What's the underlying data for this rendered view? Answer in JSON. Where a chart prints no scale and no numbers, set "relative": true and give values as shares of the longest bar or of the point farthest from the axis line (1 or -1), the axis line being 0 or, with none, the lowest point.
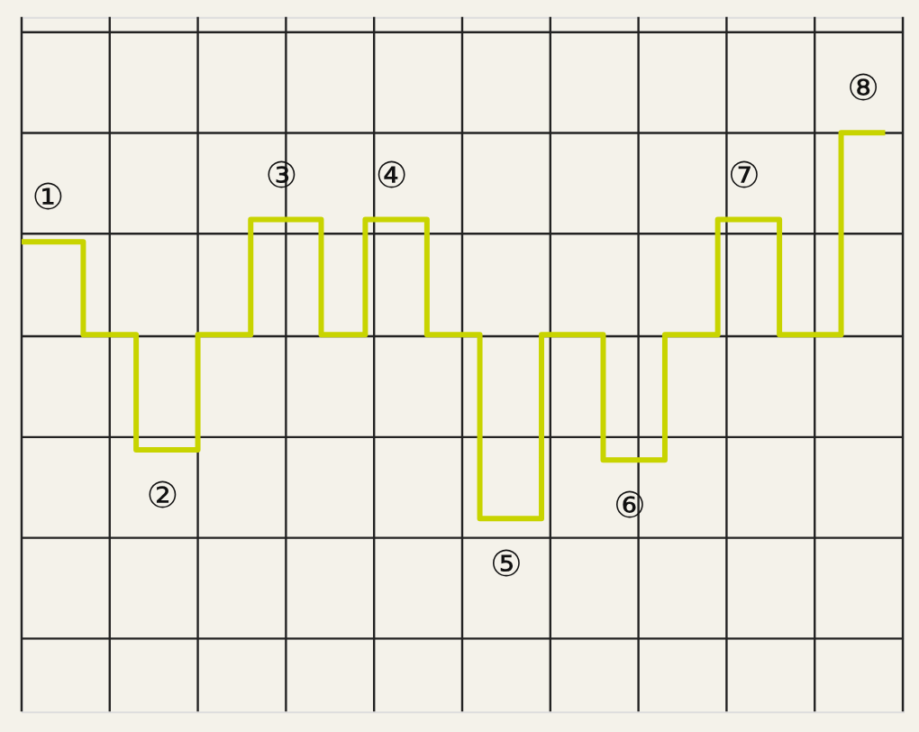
{
  "chart_data": {
    "type": "step",
    "relative": true,
    "grid": true,
    "categories": [
      null,
      null,
      null,
      null,
      null,
      null,
      null,
      null,
      null,
      null,
      null,
      null,
      null,
      null,
      null,
      null,
      null,
      null,
      null,
      null,
      null,
      null,
      null,
      null,
      null,
      null,
      null,
      null,
      null,
      null,
      null,
      null,
      null,
      null,
      null,
      null,
      null,
      null,
      null,
      null,
      null,
      null,
      null,
      null,
      null,
      null,
      null,
      null,
      null,
      null,
      null,
      null,
      null,
      null,
      null,
      null,
      null,
      null,
      null,
      null,
      null,
      null,
      null,
      null,
      null,
      null,
      null,
      null,
      null,
      null,
      null,
      null,
      null,
      null,
      null,
      null,
      null,
      null,
      null,
      null,
      null,
      null,
      null,
      null,
      null,
      null,
      null,
      null,
      null,
      null,
      null,
      null,
      null,
      null,
      null,
      null,
      null,
      null,
      null,
      null,
      null
    ],
    "series": [
      {
        "color": "#c8d400",
        "values": [
          0.46,
          0.46,
          0.46,
          0.46,
          0.46,
          0.46,
          0.46,
          0,
          0,
          0,
          0,
          0,
          0,
          -0.57,
          -0.57,
          -0.57,
          -0.57,
          -0.57,
          -0.57,
          -0.57,
          0,
          0,
          0,
          0,
          0,
          0,
          0.57,
          0.57,
          0.57,
          0.57,
          0.57,
          0.57,
          0.57,
          0.57,
          0,
          0,
          0,
          0,
          0,
          0.57,
          0.57,
          0.57,
          0.57,
          0.57,
          0.57,
          0.57,
          0,
          0,
          0,
          0,
          0,
          0,
          -0.91,
          -0.91,
          -0.91,
          -0.91,
          -0.91,
          -0.91,
          -0.91,
          0,
          0,
          0,
          0,
          0,
          0,
          0,
          -0.62,
          -0.62,
          -0.62,
          -0.62,
          -0.62,
          -0.62,
          -0.62,
          0,
          0,
          0,
          0,
          0,
          0,
          0.57,
          0.57,
          0.57,
          0.57,
          0.57,
          0.57,
          0.57,
          0,
          0,
          0,
          0,
          0,
          0,
          0,
          1,
          1,
          1,
          1,
          1,
          1,
          null,
          null
        ]
      }
    ],
    "annotations": [
      "①",
      "②",
      "③",
      "④",
      "⑤",
      "⑥",
      "⑦",
      "⑧"
    ]
  }
}
